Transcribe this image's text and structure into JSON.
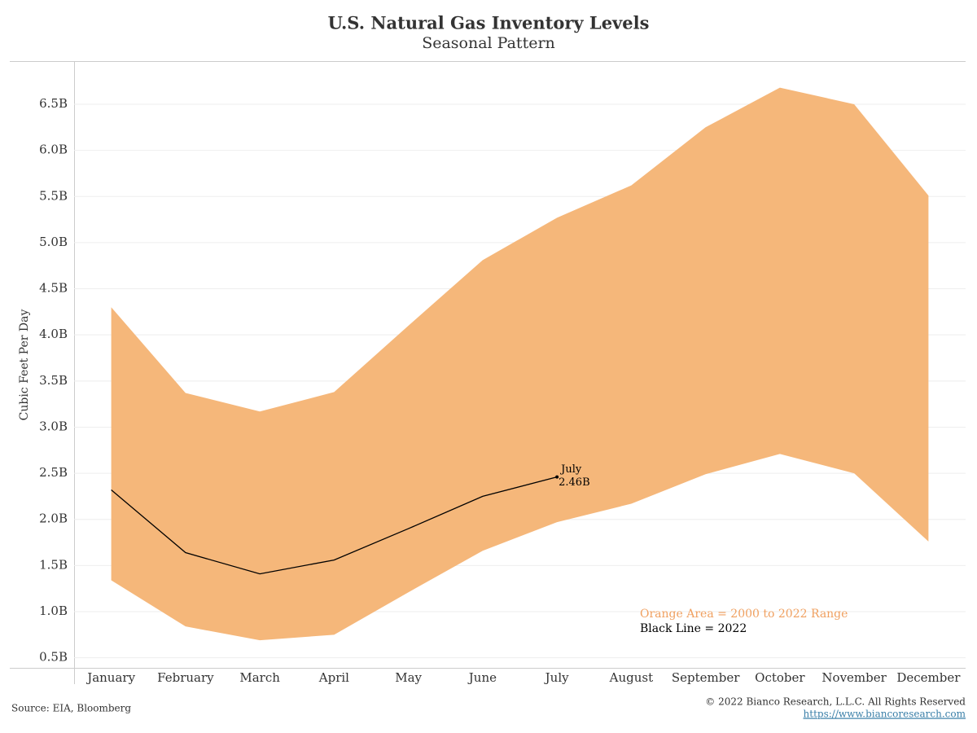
{
  "chart_data": {
    "type": "range_line",
    "title": "U.S. Natural Gas Inventory Levels",
    "subtitle": "Seasonal Pattern",
    "y_label": "Cubic Feet Per Day",
    "categories": [
      "January",
      "February",
      "March",
      "April",
      "May",
      "June",
      "July",
      "August",
      "September",
      "October",
      "November",
      "December"
    ],
    "series": [
      {
        "name": "Orange Area = 2000 to 2022 Range",
        "color": "#f5b77a",
        "high": [
          4.3,
          3.37,
          3.17,
          3.38,
          4.1,
          4.81,
          5.27,
          5.62,
          6.25,
          6.68,
          6.5,
          5.51
        ],
        "low": [
          1.34,
          0.84,
          0.69,
          0.75,
          1.21,
          1.66,
          1.97,
          2.17,
          2.49,
          2.71,
          2.5,
          1.76
        ]
      },
      {
        "name": "Black Line = 2022",
        "color": "#000000",
        "values": [
          2.32,
          1.64,
          1.41,
          1.56,
          1.9,
          2.25,
          2.46,
          null,
          null,
          null,
          null,
          null
        ],
        "value_labels": [
          null,
          null,
          null,
          null,
          null,
          null,
          "2.46B",
          null,
          null,
          null,
          null,
          null
        ]
      }
    ],
    "ylim": [
      0.4,
      6.95
    ],
    "yticks": [
      {
        "value": 0.5,
        "label": "0.5B"
      },
      {
        "value": 1.0,
        "label": "1.0B"
      },
      {
        "value": 1.5,
        "label": "1.5B"
      },
      {
        "value": 2.0,
        "label": "2.0B"
      },
      {
        "value": 2.5,
        "label": "2.5B"
      },
      {
        "value": 3.0,
        "label": "3.0B"
      },
      {
        "value": 3.5,
        "label": "3.5B"
      },
      {
        "value": 4.0,
        "label": "4.0B"
      },
      {
        "value": 4.5,
        "label": "4.5B"
      },
      {
        "value": 5.0,
        "label": "5.0B"
      },
      {
        "value": 5.5,
        "label": "5.5B"
      },
      {
        "value": 6.0,
        "label": "6.0B"
      },
      {
        "value": 6.5,
        "label": "6.5B"
      }
    ],
    "grid": true,
    "source": "Source: EIA, Bloomberg",
    "copyright": "© 2022 Bianco Research, L.L.C. All Rights Reserved",
    "url": "https://www.biancoresearch.com"
  }
}
